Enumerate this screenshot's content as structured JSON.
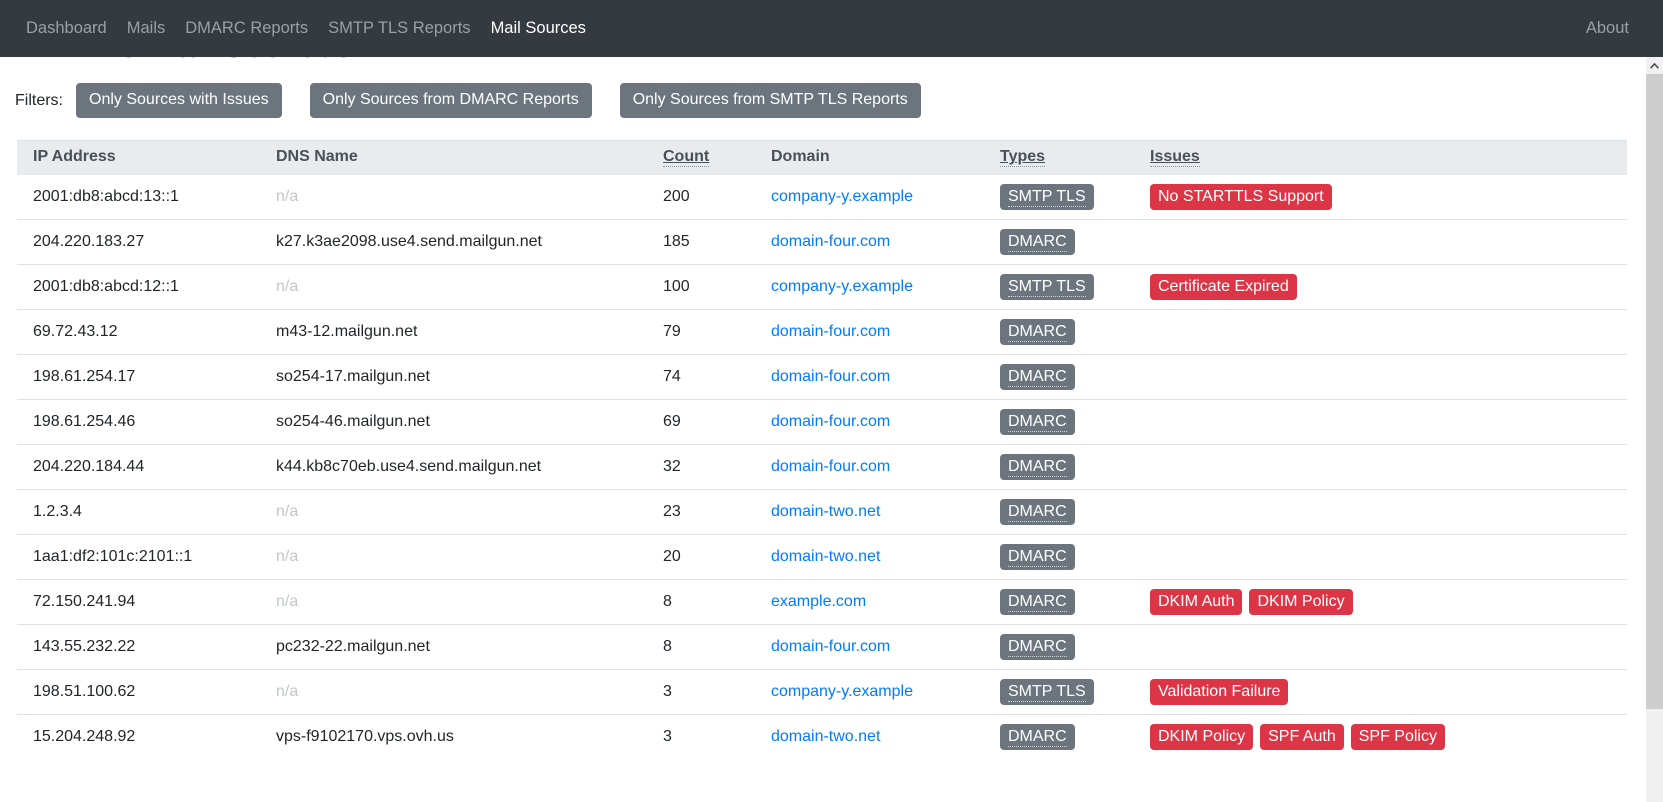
{
  "navbar": {
    "items": [
      {
        "label": "Dashboard",
        "active": false
      },
      {
        "label": "Mails",
        "active": false
      },
      {
        "label": "DMARC Reports",
        "active": false
      },
      {
        "label": "SMTP TLS Reports",
        "active": false
      },
      {
        "label": "Mail Sources",
        "active": true
      }
    ],
    "right_items": [
      {
        "label": "About",
        "active": false
      }
    ]
  },
  "page": {
    "title": "DMARC Mail Sources"
  },
  "filters": {
    "label": "Filters:",
    "buttons": [
      "Only Sources with Issues",
      "Only Sources from DMARC Reports",
      "Only Sources from SMTP TLS Reports"
    ]
  },
  "table": {
    "columns": [
      {
        "label": "IP Address",
        "sortable": false
      },
      {
        "label": "DNS Name",
        "sortable": false
      },
      {
        "label": "Count",
        "sortable": true
      },
      {
        "label": "Domain",
        "sortable": false
      },
      {
        "label": "Types",
        "sortable": true
      },
      {
        "label": "Issues",
        "sortable": true
      }
    ],
    "rows": [
      {
        "ip": "2001:db8:abcd:13::1",
        "dns": "n/a",
        "count": "200",
        "domain": "company-y.example",
        "types": [
          "SMTP TLS"
        ],
        "issues": [
          "No STARTTLS Support"
        ]
      },
      {
        "ip": "204.220.183.27",
        "dns": "k27.k3ae2098.use4.send.mailgun.net",
        "count": "185",
        "domain": "domain-four.com",
        "types": [
          "DMARC"
        ],
        "issues": []
      },
      {
        "ip": "2001:db8:abcd:12::1",
        "dns": "n/a",
        "count": "100",
        "domain": "company-y.example",
        "types": [
          "SMTP TLS"
        ],
        "issues": [
          "Certificate Expired"
        ]
      },
      {
        "ip": "69.72.43.12",
        "dns": "m43-12.mailgun.net",
        "count": "79",
        "domain": "domain-four.com",
        "types": [
          "DMARC"
        ],
        "issues": []
      },
      {
        "ip": "198.61.254.17",
        "dns": "so254-17.mailgun.net",
        "count": "74",
        "domain": "domain-four.com",
        "types": [
          "DMARC"
        ],
        "issues": []
      },
      {
        "ip": "198.61.254.46",
        "dns": "so254-46.mailgun.net",
        "count": "69",
        "domain": "domain-four.com",
        "types": [
          "DMARC"
        ],
        "issues": []
      },
      {
        "ip": "204.220.184.44",
        "dns": "k44.kb8c70eb.use4.send.mailgun.net",
        "count": "32",
        "domain": "domain-four.com",
        "types": [
          "DMARC"
        ],
        "issues": []
      },
      {
        "ip": "1.2.3.4",
        "dns": "n/a",
        "count": "23",
        "domain": "domain-two.net",
        "types": [
          "DMARC"
        ],
        "issues": []
      },
      {
        "ip": "1aa1:df2:101c:2101::1",
        "dns": "n/a",
        "count": "20",
        "domain": "domain-two.net",
        "types": [
          "DMARC"
        ],
        "issues": []
      },
      {
        "ip": "72.150.241.94",
        "dns": "n/a",
        "count": "8",
        "domain": "example.com",
        "types": [
          "DMARC"
        ],
        "issues": [
          "DKIM Auth",
          "DKIM Policy"
        ]
      },
      {
        "ip": "143.55.232.22",
        "dns": "pc232-22.mailgun.net",
        "count": "8",
        "domain": "domain-four.com",
        "types": [
          "DMARC"
        ],
        "issues": []
      },
      {
        "ip": "198.51.100.62",
        "dns": "n/a",
        "count": "3",
        "domain": "company-y.example",
        "types": [
          "SMTP TLS"
        ],
        "issues": [
          "Validation Failure"
        ]
      },
      {
        "ip": "15.204.248.92",
        "dns": "vps-f9102170.vps.ovh.us",
        "count": "3",
        "domain": "domain-two.net",
        "types": [
          "DMARC"
        ],
        "issues": [
          "DKIM Policy",
          "SPF Auth",
          "SPF Policy"
        ]
      }
    ]
  },
  "colors": {
    "navbar_bg": "#343a40",
    "nav_inactive_text": "#9aa0a6",
    "nav_active_text": "#ffffff",
    "filter_button_bg": "#6c757d",
    "table_header_bg": "#e9ecef",
    "link": "#007bff",
    "type_badge_bg": "#6c757d",
    "issue_badge_bg": "#dc3545",
    "muted_text": "#c2c6ca"
  },
  "scrollbar": {
    "up_icon": "chevron-up"
  }
}
